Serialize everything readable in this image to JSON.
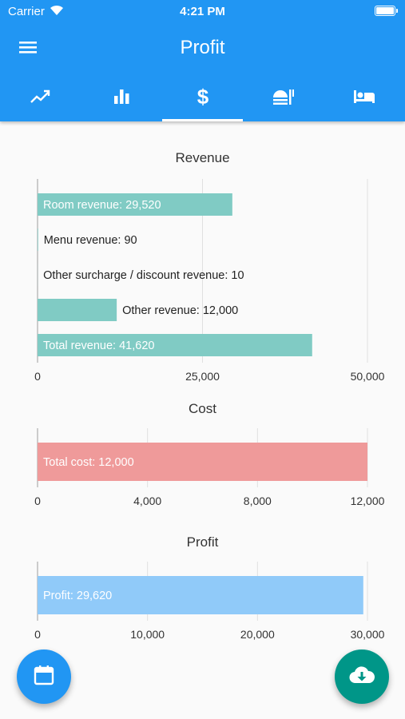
{
  "status_bar": {
    "carrier": "Carrier",
    "time": "4:21 PM"
  },
  "app_bar": {
    "title": "Profit"
  },
  "tabs": [
    {
      "icon": "trending-up-icon",
      "active": false
    },
    {
      "icon": "bar-chart-icon",
      "active": false
    },
    {
      "icon": "dollar-icon",
      "active": true
    },
    {
      "icon": "food-icon",
      "active": false
    },
    {
      "icon": "bed-icon",
      "active": false
    }
  ],
  "colors": {
    "primary": "#2196f3",
    "revenue": "#80cbc4",
    "cost": "#ef9a9a",
    "profit": "#90caf9",
    "fab_right": "#009688"
  },
  "chart_data": [
    {
      "type": "bar",
      "orientation": "horizontal",
      "title": "Revenue",
      "categories": [
        "Room revenue",
        "Menu revenue",
        "Other surcharge / discount revenue",
        "Other revenue",
        "Total revenue"
      ],
      "values": [
        29520,
        90,
        10,
        12000,
        41620
      ],
      "labels": [
        "Room revenue: 29,520",
        "Menu revenue: 90",
        "Other surcharge / discount revenue: 10",
        "Other revenue: 12,000",
        "Total revenue: 41,620"
      ],
      "xlim": [
        0,
        50000
      ],
      "ticks": [
        0,
        25000,
        50000
      ],
      "tick_labels": [
        "0",
        "25,000",
        "50,000"
      ],
      "color": "#80cbc4",
      "grid": true
    },
    {
      "type": "bar",
      "orientation": "horizontal",
      "title": "Cost",
      "categories": [
        "Total cost"
      ],
      "values": [
        12000
      ],
      "labels": [
        "Total cost: 12,000"
      ],
      "xlim": [
        0,
        12000
      ],
      "ticks": [
        0,
        4000,
        8000,
        12000
      ],
      "tick_labels": [
        "0",
        "4,000",
        "8,000",
        "12,000"
      ],
      "color": "#ef9a9a",
      "grid": true
    },
    {
      "type": "bar",
      "orientation": "horizontal",
      "title": "Profit",
      "categories": [
        "Profit"
      ],
      "values": [
        29620
      ],
      "labels": [
        "Profit: 29,620"
      ],
      "xlim": [
        0,
        30000
      ],
      "ticks": [
        0,
        10000,
        20000,
        30000
      ],
      "tick_labels": [
        "0",
        "10,000",
        "20,000",
        "30,000"
      ],
      "color": "#90caf9",
      "grid": true
    }
  ],
  "fabs": {
    "left_icon": "calendar-icon",
    "right_icon": "cloud-download-icon"
  }
}
